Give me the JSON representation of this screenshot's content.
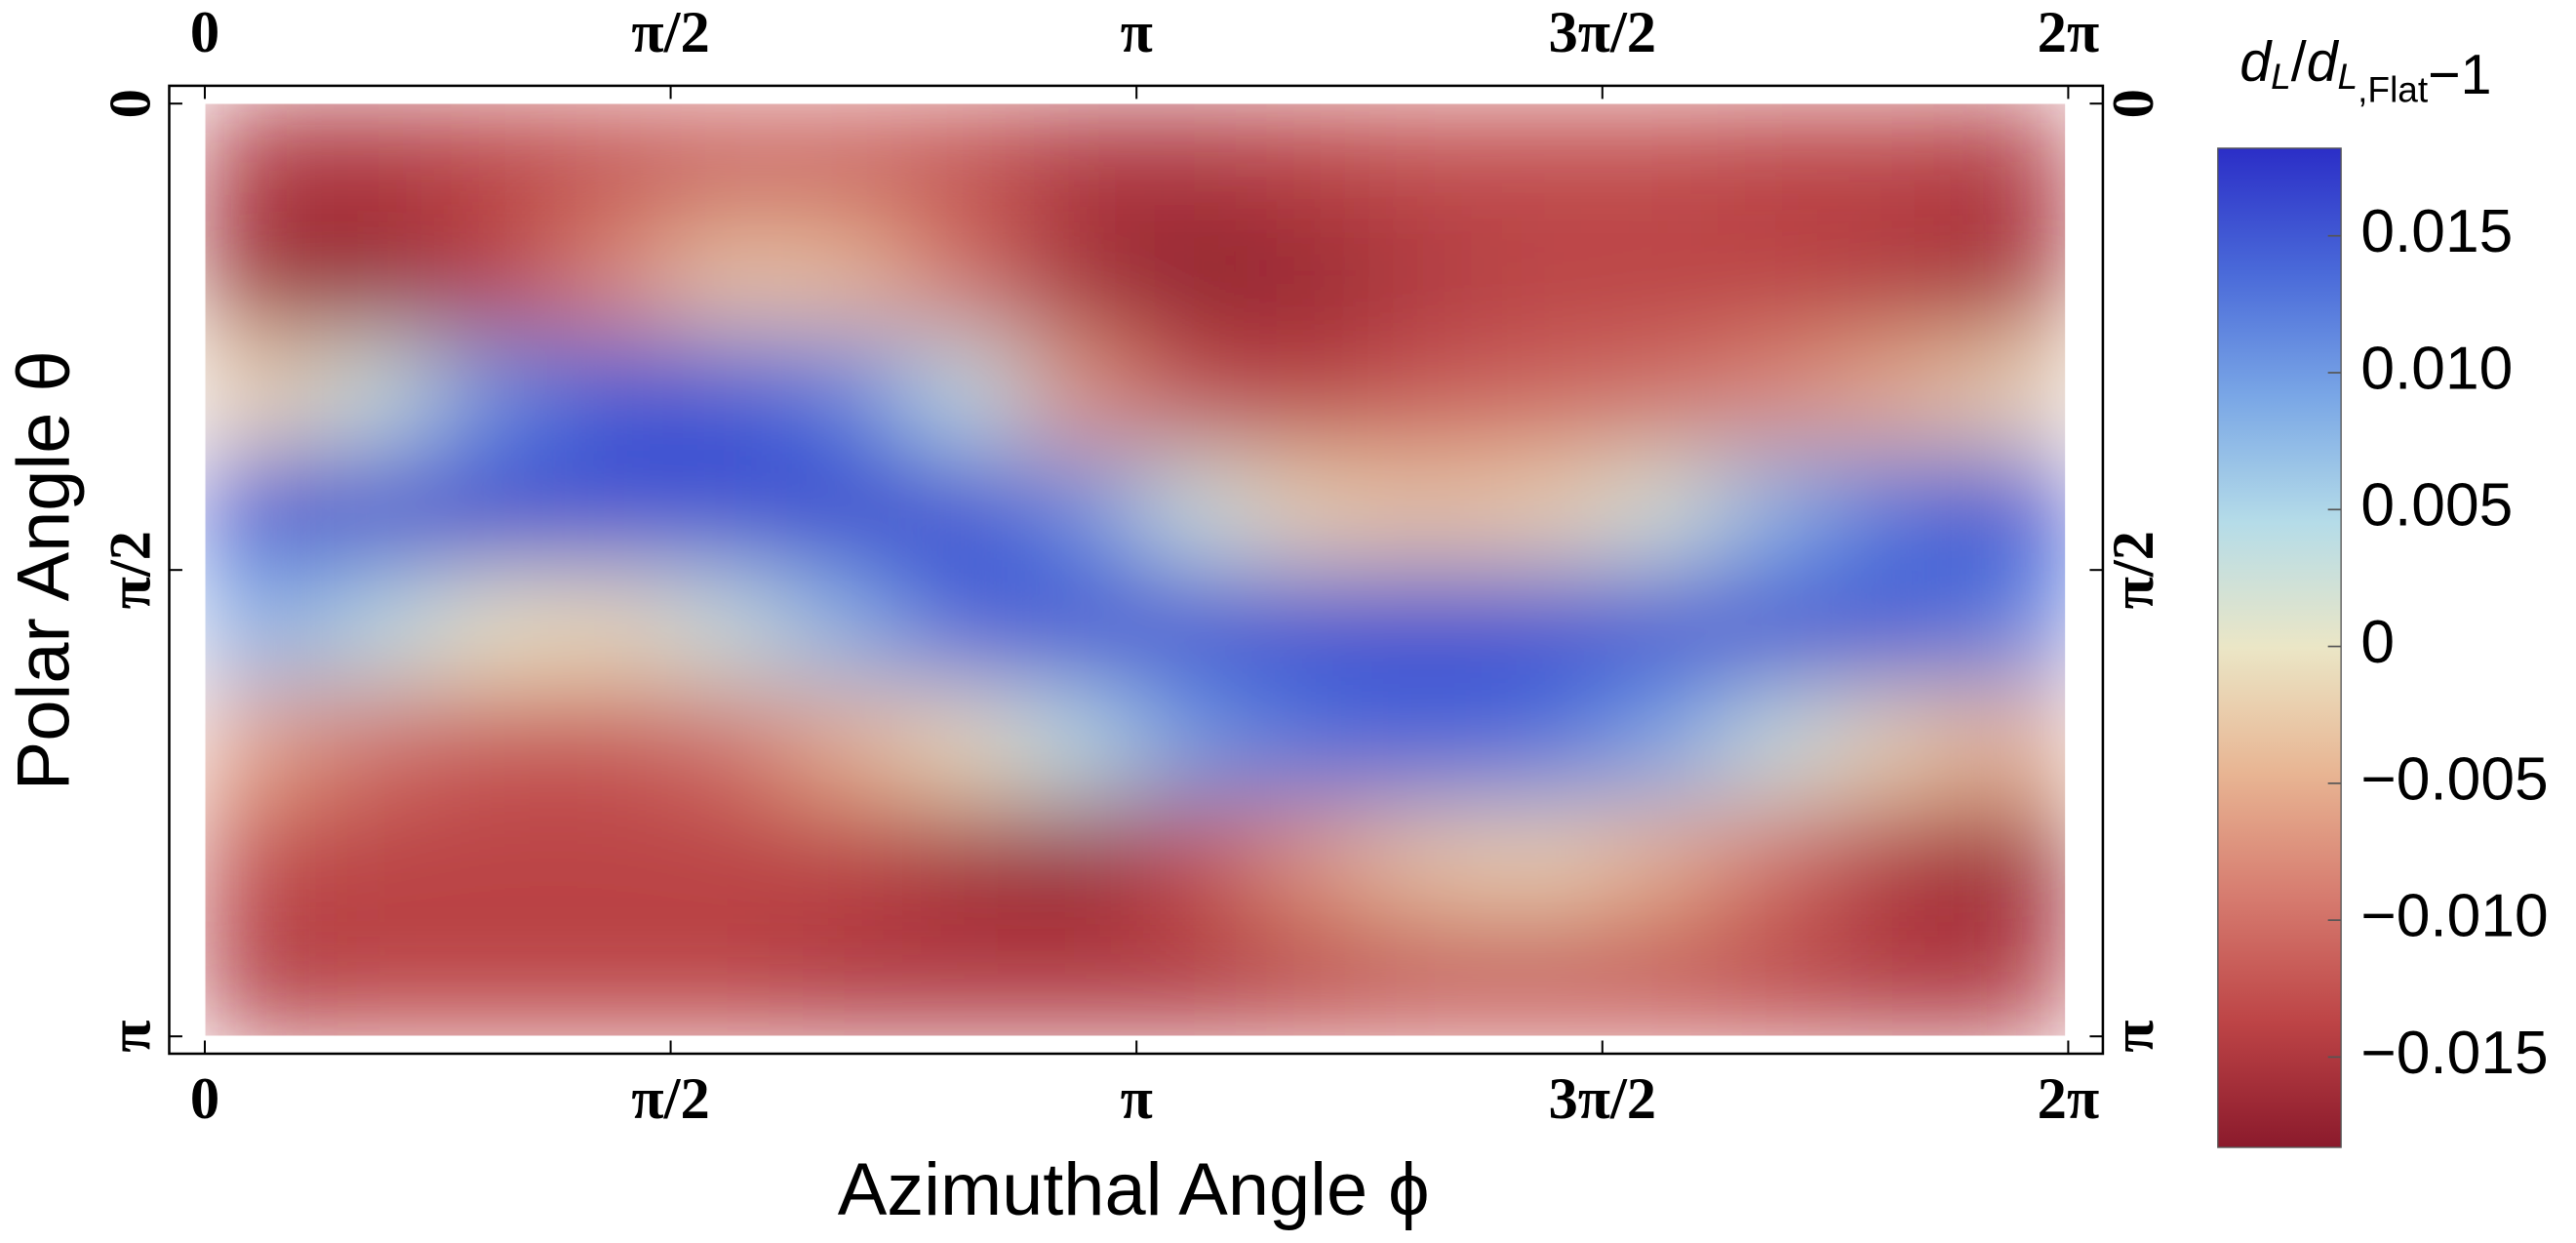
{
  "chart_data": {
    "type": "heatmap",
    "x_label": "Azimuthal Angle ϕ",
    "y_label": "Polar Angle θ",
    "x": [
      0.1963,
      0.589,
      0.9817,
      1.3744,
      1.7671,
      2.1598,
      2.5525,
      2.9452,
      3.3379,
      3.7306,
      4.1233,
      4.516,
      4.9087,
      5.3014,
      5.6941,
      6.0868
    ],
    "y": [
      0.1963,
      0.589,
      0.9817,
      1.3744,
      1.7671,
      2.1598,
      2.5525,
      2.9452
    ],
    "z": [
      [
        -0.015,
        -0.015,
        -0.014,
        -0.013,
        -0.012,
        -0.012,
        -0.013,
        -0.015,
        -0.015,
        -0.014,
        -0.013,
        -0.013,
        -0.013,
        -0.014,
        -0.014,
        -0.015
      ],
      [
        -0.017,
        -0.017,
        -0.014,
        -0.008,
        -0.003,
        -0.004,
        -0.01,
        -0.016,
        -0.018,
        -0.017,
        -0.015,
        -0.014,
        -0.014,
        -0.014,
        -0.015,
        -0.016
      ],
      [
        -0.002,
        0.003,
        0.011,
        0.015,
        0.015,
        0.012,
        0.004,
        -0.007,
        -0.013,
        -0.014,
        -0.012,
        -0.011,
        -0.01,
        -0.008,
        -0.005,
        -0.002
      ],
      [
        0.016,
        0.017,
        0.017,
        0.016,
        0.016,
        0.017,
        0.016,
        0.011,
        0.003,
        -0.002,
        -0.003,
        -0.002,
        0.002,
        0.008,
        0.013,
        0.016
      ],
      [
        0.008,
        0.004,
        0.0,
        -0.001,
        0.003,
        0.008,
        0.014,
        0.016,
        0.016,
        0.016,
        0.016,
        0.016,
        0.016,
        0.016,
        0.015,
        0.012
      ],
      [
        -0.006,
        -0.01,
        -0.012,
        -0.012,
        -0.01,
        -0.005,
        -0.001,
        0.004,
        0.01,
        0.013,
        0.014,
        0.013,
        0.009,
        0.003,
        -0.002,
        -0.005
      ],
      [
        -0.013,
        -0.014,
        -0.014,
        -0.014,
        -0.014,
        -0.014,
        -0.016,
        -0.017,
        -0.013,
        -0.007,
        -0.003,
        -0.002,
        -0.005,
        -0.01,
        -0.015,
        -0.017
      ],
      [
        -0.015,
        -0.014,
        -0.014,
        -0.014,
        -0.014,
        -0.015,
        -0.015,
        -0.015,
        -0.015,
        -0.014,
        -0.013,
        -0.013,
        -0.013,
        -0.014,
        -0.015,
        -0.015
      ]
    ],
    "xlim": [
      -0.12,
      6.4
    ],
    "ylim": [
      3.2,
      -0.06
    ],
    "xticks": [
      {
        "value": 0,
        "label": "0"
      },
      {
        "value": 1.5708,
        "label": "π/2"
      },
      {
        "value": 3.1416,
        "label": "π"
      },
      {
        "value": 4.7124,
        "label": "3π/2"
      },
      {
        "value": 6.2832,
        "label": "2π"
      }
    ],
    "yticks": [
      {
        "value": 0,
        "label": "0"
      },
      {
        "value": 1.5708,
        "label": "π/2"
      },
      {
        "value": 3.1416,
        "label": "π"
      }
    ],
    "colorbar": {
      "label": [
        {
          "text": "d",
          "style": "italic"
        },
        {
          "text": "L",
          "style": "sub-italic"
        },
        {
          "text": "/",
          "style": "normal"
        },
        {
          "text": "d",
          "style": "italic"
        },
        {
          "text": "L",
          "style": "sub-italic"
        },
        {
          "text": ",Flat",
          "style": "sub"
        },
        {
          "text": "−1",
          "style": "normal"
        }
      ],
      "lim": [
        -0.0183,
        0.0182
      ],
      "ticks": [
        {
          "value": -0.015,
          "label": "−0.015"
        },
        {
          "value": -0.01,
          "label": "−0.010"
        },
        {
          "value": -0.005,
          "label": "−0.005"
        },
        0,
        0.005,
        {
          "value": 0.01,
          "label": "0.010"
        },
        0.015
      ],
      "colormap": [
        "#8b1a2c",
        "#bd4446",
        "#d67b6f",
        "#e8b593",
        "#ebe6c6",
        "#b5dce8",
        "#7aa7e6",
        "#4a6ad9",
        "#2b2ec7"
      ]
    }
  }
}
